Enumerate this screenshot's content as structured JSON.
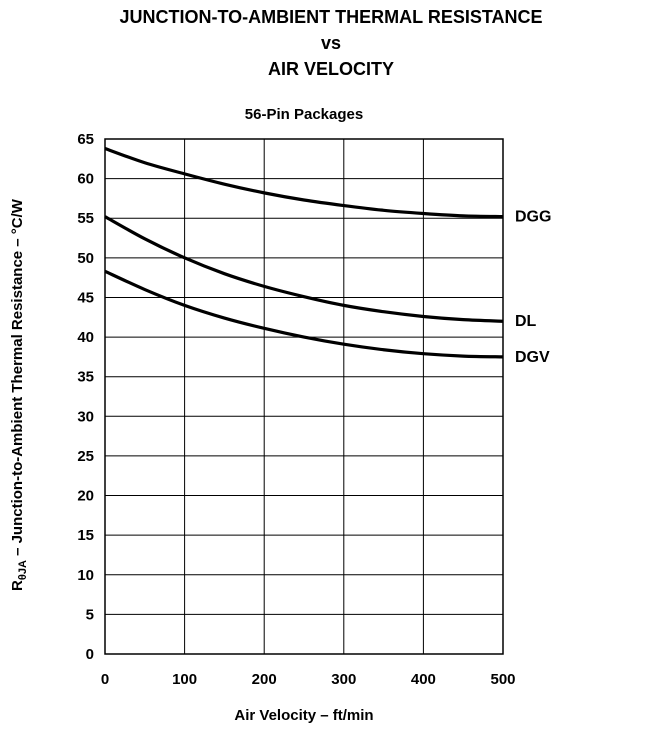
{
  "chart_data": {
    "type": "line",
    "title_lines": [
      "JUNCTION-TO-AMBIENT THERMAL RESISTANCE",
      "vs",
      "AIR VELOCITY"
    ],
    "subtitle": "56-Pin Packages",
    "xlabel": "Air Velocity – ft/min",
    "ylabel": {
      "prefix": "R",
      "subscript": "θJA",
      "rest": " – Junction-to-Ambient Thermal Resistance – °C/W"
    },
    "xlim": [
      0,
      500
    ],
    "ylim": [
      0,
      65
    ],
    "x_ticks": [
      0,
      100,
      200,
      300,
      400,
      500
    ],
    "y_ticks": [
      0,
      5,
      10,
      15,
      20,
      25,
      30,
      35,
      40,
      45,
      50,
      55,
      60,
      65
    ],
    "grid": true,
    "series": [
      {
        "name": "DGG",
        "x": [
          0,
          50,
          100,
          150,
          200,
          250,
          300,
          350,
          400,
          450,
          500
        ],
        "values": [
          63.8,
          62.0,
          60.6,
          59.3,
          58.2,
          57.3,
          56.6,
          56.0,
          55.6,
          55.3,
          55.2
        ]
      },
      {
        "name": "DL",
        "x": [
          0,
          50,
          100,
          150,
          200,
          250,
          300,
          350,
          400,
          450,
          500
        ],
        "values": [
          55.2,
          52.4,
          50.0,
          48.0,
          46.4,
          45.1,
          44.0,
          43.2,
          42.6,
          42.2,
          42.0
        ]
      },
      {
        "name": "DGV",
        "x": [
          0,
          50,
          100,
          150,
          200,
          250,
          300,
          350,
          400,
          450,
          500
        ],
        "values": [
          48.3,
          46.0,
          44.0,
          42.4,
          41.1,
          40.0,
          39.1,
          38.4,
          37.9,
          37.6,
          37.5
        ]
      }
    ]
  }
}
